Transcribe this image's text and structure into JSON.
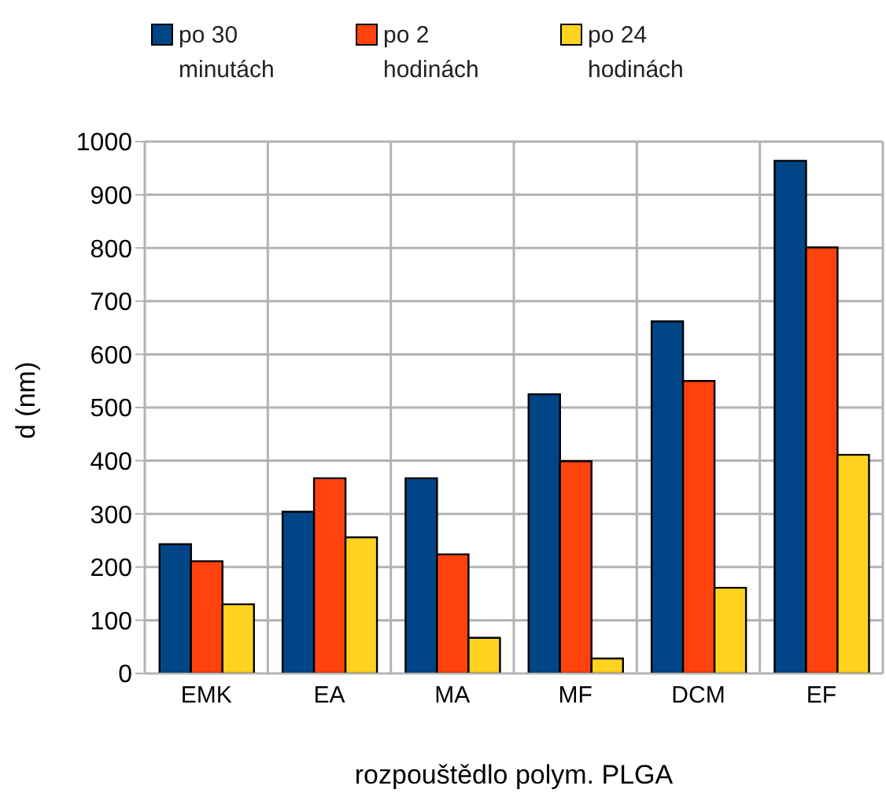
{
  "chart_data": {
    "type": "bar",
    "xlabel": "rozpouštědlo polym. PLGA",
    "ylabel": "d (nm)",
    "categories": [
      "EMK",
      "EA",
      "MA",
      "MF",
      "DCM",
      "EF"
    ],
    "series": [
      {
        "name": "po 30 minutách",
        "color": "#004586",
        "values": [
          243,
          304,
          367,
          525,
          662,
          964
        ]
      },
      {
        "name": "po 2 hodinách",
        "color": "#ff420e",
        "values": [
          211,
          367,
          224,
          399,
          550,
          801
        ]
      },
      {
        "name": "po 24 hodinách",
        "color": "#ffd320",
        "values": [
          130,
          256,
          67,
          28,
          161,
          411
        ]
      }
    ],
    "ylim": [
      0,
      1000
    ],
    "yticks": [
      0,
      100,
      200,
      300,
      400,
      500,
      600,
      700,
      800,
      900,
      1000
    ],
    "grid": true,
    "legend": "top"
  }
}
